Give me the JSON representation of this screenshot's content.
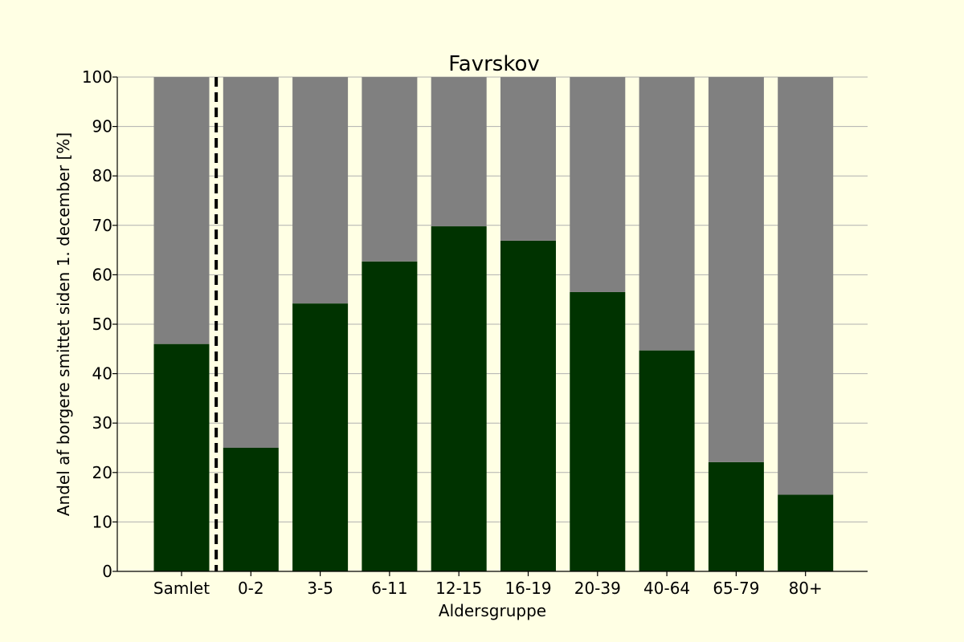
{
  "chart_data": {
    "type": "bar",
    "stacked": true,
    "title": "Favrskov",
    "xlabel": "Aldersgruppe",
    "ylabel": "Andel af borgere smittet siden 1. december [%]",
    "categories": [
      "Samlet",
      "0-2",
      "3-5",
      "6-11",
      "12-15",
      "16-19",
      "20-39",
      "40-64",
      "65-79",
      "80+"
    ],
    "series": [
      {
        "values": [
          46,
          25,
          54.2,
          62.7,
          69.8,
          66.9,
          56.5,
          44.7,
          22.1,
          15.5
        ],
        "color": "#003300"
      },
      {
        "values": [
          54,
          75,
          45.8,
          37.3,
          30.2,
          33.1,
          43.5,
          55.3,
          77.9,
          84.5
        ],
        "color": "#808080"
      }
    ],
    "ylim": [
      0,
      100
    ],
    "yticks": [
      0,
      10,
      20,
      30,
      40,
      50,
      60,
      70,
      80,
      90,
      100
    ],
    "grid": "horizontal",
    "separator_after_category": "Samlet",
    "background_color": "#ffffe4"
  }
}
